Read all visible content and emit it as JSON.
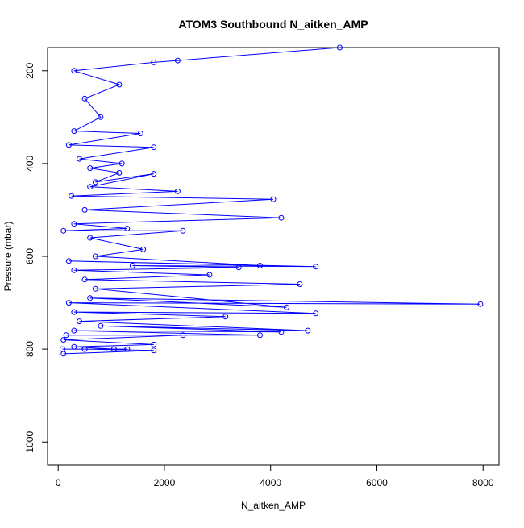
{
  "chart_data": {
    "type": "line",
    "title": "ATOM3 Southbound N_aitken_AMP",
    "xlabel": "N_aitken_AMP",
    "ylabel": "Pressure (mbar)",
    "xlim": [
      -200,
      8300
    ],
    "ylim": [
      1050,
      150
    ],
    "x_ticks": [
      0,
      2000,
      4000,
      6000,
      8000
    ],
    "y_ticks": [
      200,
      400,
      600,
      800,
      1000
    ],
    "y_reversed": true,
    "grid": false,
    "line_color": "#0000ff",
    "marker": "open-circle",
    "series": [
      {
        "name": "",
        "x": [
          5300,
          2250,
          1800,
          300,
          1150,
          500,
          800,
          300,
          1550,
          200,
          1800,
          400,
          1200,
          600,
          1150,
          700,
          1800,
          600,
          2250,
          250,
          4050,
          500,
          4200,
          300,
          1300,
          100,
          2350,
          600,
          1600,
          700,
          3800,
          200,
          4850,
          1400,
          3400,
          300,
          2850,
          500,
          4550,
          700,
          4300,
          600,
          7950,
          200,
          4850,
          300,
          3150,
          400,
          4700,
          800,
          4200,
          300,
          3800,
          150,
          2350,
          100,
          1800,
          300,
          1050,
          80,
          1300,
          500,
          1800,
          100
        ],
        "y": [
          150,
          178,
          182,
          200,
          230,
          260,
          300,
          330,
          335,
          360,
          365,
          390,
          400,
          410,
          420,
          440,
          422,
          450,
          460,
          470,
          477,
          500,
          517,
          530,
          540,
          545,
          545,
          560,
          585,
          600,
          620,
          610,
          622,
          620,
          624,
          630,
          640,
          650,
          660,
          670,
          710,
          690,
          703,
          700,
          723,
          720,
          730,
          740,
          760,
          750,
          763,
          760,
          770,
          770,
          770,
          780,
          790,
          795,
          800,
          800,
          800,
          800,
          803,
          810
        ]
      }
    ]
  }
}
